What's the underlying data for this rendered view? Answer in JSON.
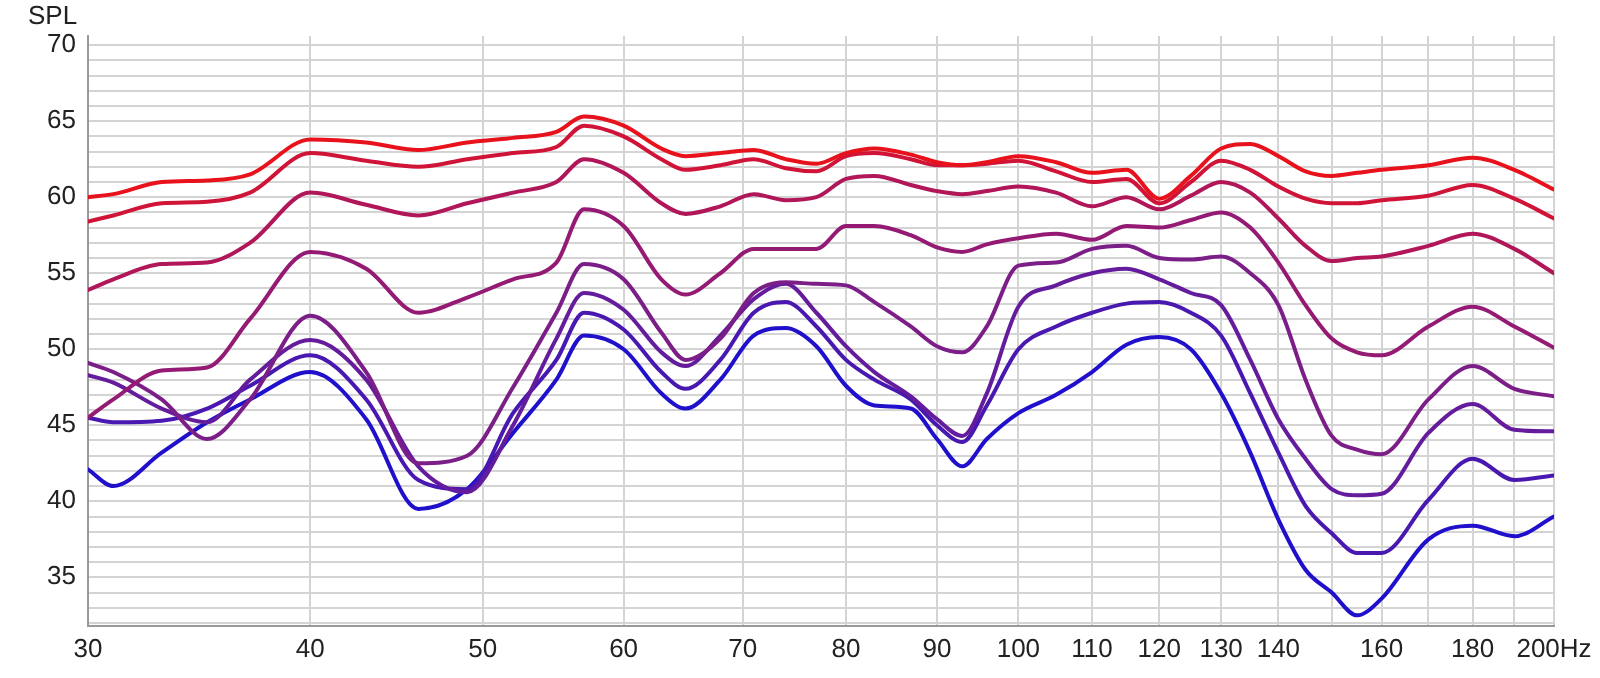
{
  "chart_data": {
    "type": "line",
    "ylabel": "SPL",
    "log": "x",
    "grid": true,
    "marker": "none",
    "line_style": "solid",
    "x": [
      30,
      31,
      33,
      35,
      37,
      40,
      43,
      46,
      49,
      52,
      55,
      57,
      60,
      63,
      65,
      68,
      71,
      74,
      77,
      80,
      83,
      87,
      90,
      93,
      96,
      100,
      105,
      110,
      115,
      120,
      125,
      130,
      135,
      140,
      145,
      150,
      155,
      160,
      170,
      180,
      190,
      200
    ],
    "xlim": [
      30,
      200
    ],
    "xticks": [
      30,
      40,
      50,
      60,
      70,
      80,
      90,
      100,
      110,
      120,
      130,
      140,
      {
        "value": 150,
        "label": null
      },
      160,
      {
        "value": 170,
        "label": null
      },
      180,
      {
        "value": 190,
        "label": null
      },
      {
        "value": 200,
        "label": "200Hz"
      }
    ],
    "ylim": [
      31.8,
      70.6
    ],
    "yticks": [
      {
        "value": 32,
        "label": null
      },
      {
        "value": 33,
        "label": null
      },
      {
        "value": 34,
        "label": null
      },
      35,
      {
        "value": 36,
        "label": null
      },
      {
        "value": 37,
        "label": null
      },
      {
        "value": 38,
        "label": null
      },
      {
        "value": 39,
        "label": null
      },
      40,
      {
        "value": 41,
        "label": null
      },
      {
        "value": 42,
        "label": null
      },
      {
        "value": 43,
        "label": null
      },
      {
        "value": 44,
        "label": null
      },
      45,
      {
        "value": 46,
        "label": null
      },
      {
        "value": 47,
        "label": null
      },
      {
        "value": 48,
        "label": null
      },
      {
        "value": 49,
        "label": null
      },
      50,
      {
        "value": 51,
        "label": null
      },
      {
        "value": 52,
        "label": null
      },
      {
        "value": 53,
        "label": null
      },
      {
        "value": 54,
        "label": null
      },
      55,
      {
        "value": 56,
        "label": null
      },
      {
        "value": 57,
        "label": null
      },
      {
        "value": 58,
        "label": null
      },
      {
        "value": 59,
        "label": null
      },
      60,
      {
        "value": 61,
        "label": null
      },
      {
        "value": 62,
        "label": null
      },
      {
        "value": 63,
        "label": null
      },
      {
        "value": 64,
        "label": null
      },
      65,
      {
        "value": 66,
        "label": null
      },
      {
        "value": 67,
        "label": null
      },
      {
        "value": 68,
        "label": null
      },
      {
        "value": 69,
        "label": null
      },
      70
    ],
    "series": [
      {
        "color": "#e8121c",
        "values": [
          60.0,
          60.2,
          61.0,
          61.1,
          61.5,
          63.8,
          63.6,
          63.1,
          63.6,
          63.9,
          64.3,
          65.3,
          64.7,
          63.2,
          62.7,
          62.9,
          63.1,
          62.5,
          62.2,
          62.9,
          63.2,
          62.8,
          62.3,
          62.1,
          62.3,
          62.7,
          62.3,
          61.6,
          61.8,
          59.9,
          61.4,
          63.2,
          63.5,
          62.7,
          61.7,
          61.4,
          61.6,
          61.8,
          62.1,
          62.6,
          61.8,
          60.5
        ]
      },
      {
        "color": "#d01438",
        "values": [
          58.4,
          58.8,
          59.6,
          59.7,
          60.3,
          62.9,
          62.4,
          62.0,
          62.5,
          62.9,
          63.3,
          64.7,
          64.0,
          62.5,
          61.8,
          62.1,
          62.5,
          61.9,
          61.7,
          62.7,
          62.9,
          62.5,
          62.1,
          62.1,
          62.2,
          62.4,
          61.7,
          61.0,
          61.2,
          59.6,
          61.0,
          62.4,
          61.8,
          60.7,
          59.9,
          59.6,
          59.6,
          59.8,
          60.1,
          60.8,
          59.9,
          58.6
        ]
      },
      {
        "color": "#b01658",
        "values": [
          53.9,
          54.6,
          55.6,
          55.7,
          57.0,
          60.3,
          59.5,
          58.8,
          59.6,
          60.3,
          61.0,
          62.5,
          61.6,
          59.6,
          58.9,
          59.4,
          60.2,
          59.8,
          60.0,
          61.2,
          61.4,
          60.8,
          60.4,
          60.2,
          60.4,
          60.7,
          60.3,
          59.4,
          60.0,
          59.2,
          60.1,
          61.0,
          60.3,
          58.6,
          56.8,
          55.8,
          56.0,
          56.1,
          56.8,
          57.6,
          56.6,
          55.0
        ]
      },
      {
        "color": "#941a74",
        "values": [
          45.5,
          46.7,
          48.6,
          48.8,
          52.0,
          56.4,
          55.3,
          52.4,
          53.4,
          54.6,
          55.7,
          59.2,
          58.1,
          54.6,
          53.6,
          55.0,
          56.6,
          56.6,
          56.6,
          58.1,
          58.1,
          57.5,
          56.7,
          56.4,
          56.9,
          57.3,
          57.6,
          57.2,
          58.1,
          58.0,
          58.5,
          59.0,
          58.0,
          55.7,
          52.9,
          50.7,
          49.8,
          49.6,
          51.5,
          52.8,
          51.5,
          50.1
        ]
      },
      {
        "color": "#7c1e88",
        "values": [
          49.1,
          48.5,
          46.7,
          44.1,
          46.7,
          52.2,
          48.5,
          42.5,
          43.0,
          47.5,
          52.4,
          55.6,
          54.6,
          51.1,
          49.3,
          50.7,
          53.7,
          54.4,
          54.3,
          54.2,
          53.1,
          51.5,
          50.2,
          49.8,
          51.5,
          55.5,
          55.7,
          56.6,
          56.8,
          56.0,
          55.9,
          56.1,
          55.0,
          52.9,
          48.0,
          44.3,
          43.4,
          43.1,
          46.7,
          48.9,
          47.4,
          46.9
        ]
      },
      {
        "color": "#641c9c",
        "values": [
          48.3,
          47.8,
          46.1,
          45.2,
          48.0,
          50.6,
          48.0,
          42.3,
          40.6,
          45.0,
          50.7,
          53.7,
          52.6,
          49.8,
          48.9,
          50.9,
          53.3,
          54.3,
          52.4,
          50.2,
          48.5,
          46.9,
          45.4,
          44.3,
          47.1,
          52.8,
          54.2,
          55.0,
          55.3,
          54.6,
          53.7,
          52.9,
          49.3,
          45.4,
          42.8,
          40.8,
          40.4,
          40.5,
          44.5,
          46.4,
          44.7,
          44.6
        ]
      },
      {
        "color": "#4818b0",
        "values": [
          45.5,
          45.2,
          45.3,
          46.1,
          47.6,
          49.6,
          46.7,
          41.4,
          40.8,
          45.8,
          49.3,
          52.4,
          51.3,
          48.5,
          47.4,
          49.3,
          52.4,
          53.1,
          51.5,
          49.3,
          48.0,
          46.7,
          45.0,
          43.9,
          46.3,
          50.0,
          51.5,
          52.4,
          53.0,
          53.1,
          52.4,
          50.9,
          47.1,
          43.2,
          39.7,
          37.9,
          36.6,
          36.6,
          40.1,
          42.8,
          41.4,
          41.7
        ]
      },
      {
        "color": "#2010cc",
        "values": [
          42.1,
          41.0,
          43.2,
          45.2,
          46.7,
          48.5,
          45.4,
          39.5,
          40.8,
          44.5,
          48.0,
          50.9,
          50.0,
          47.1,
          46.1,
          48.0,
          50.9,
          51.4,
          50.2,
          47.6,
          46.3,
          46.1,
          44.1,
          42.3,
          44.1,
          45.8,
          47.0,
          48.5,
          50.3,
          50.8,
          50.0,
          47.1,
          43.2,
          38.8,
          35.5,
          34.0,
          32.5,
          33.6,
          37.5,
          38.4,
          37.7,
          39.0
        ]
      }
    ]
  }
}
